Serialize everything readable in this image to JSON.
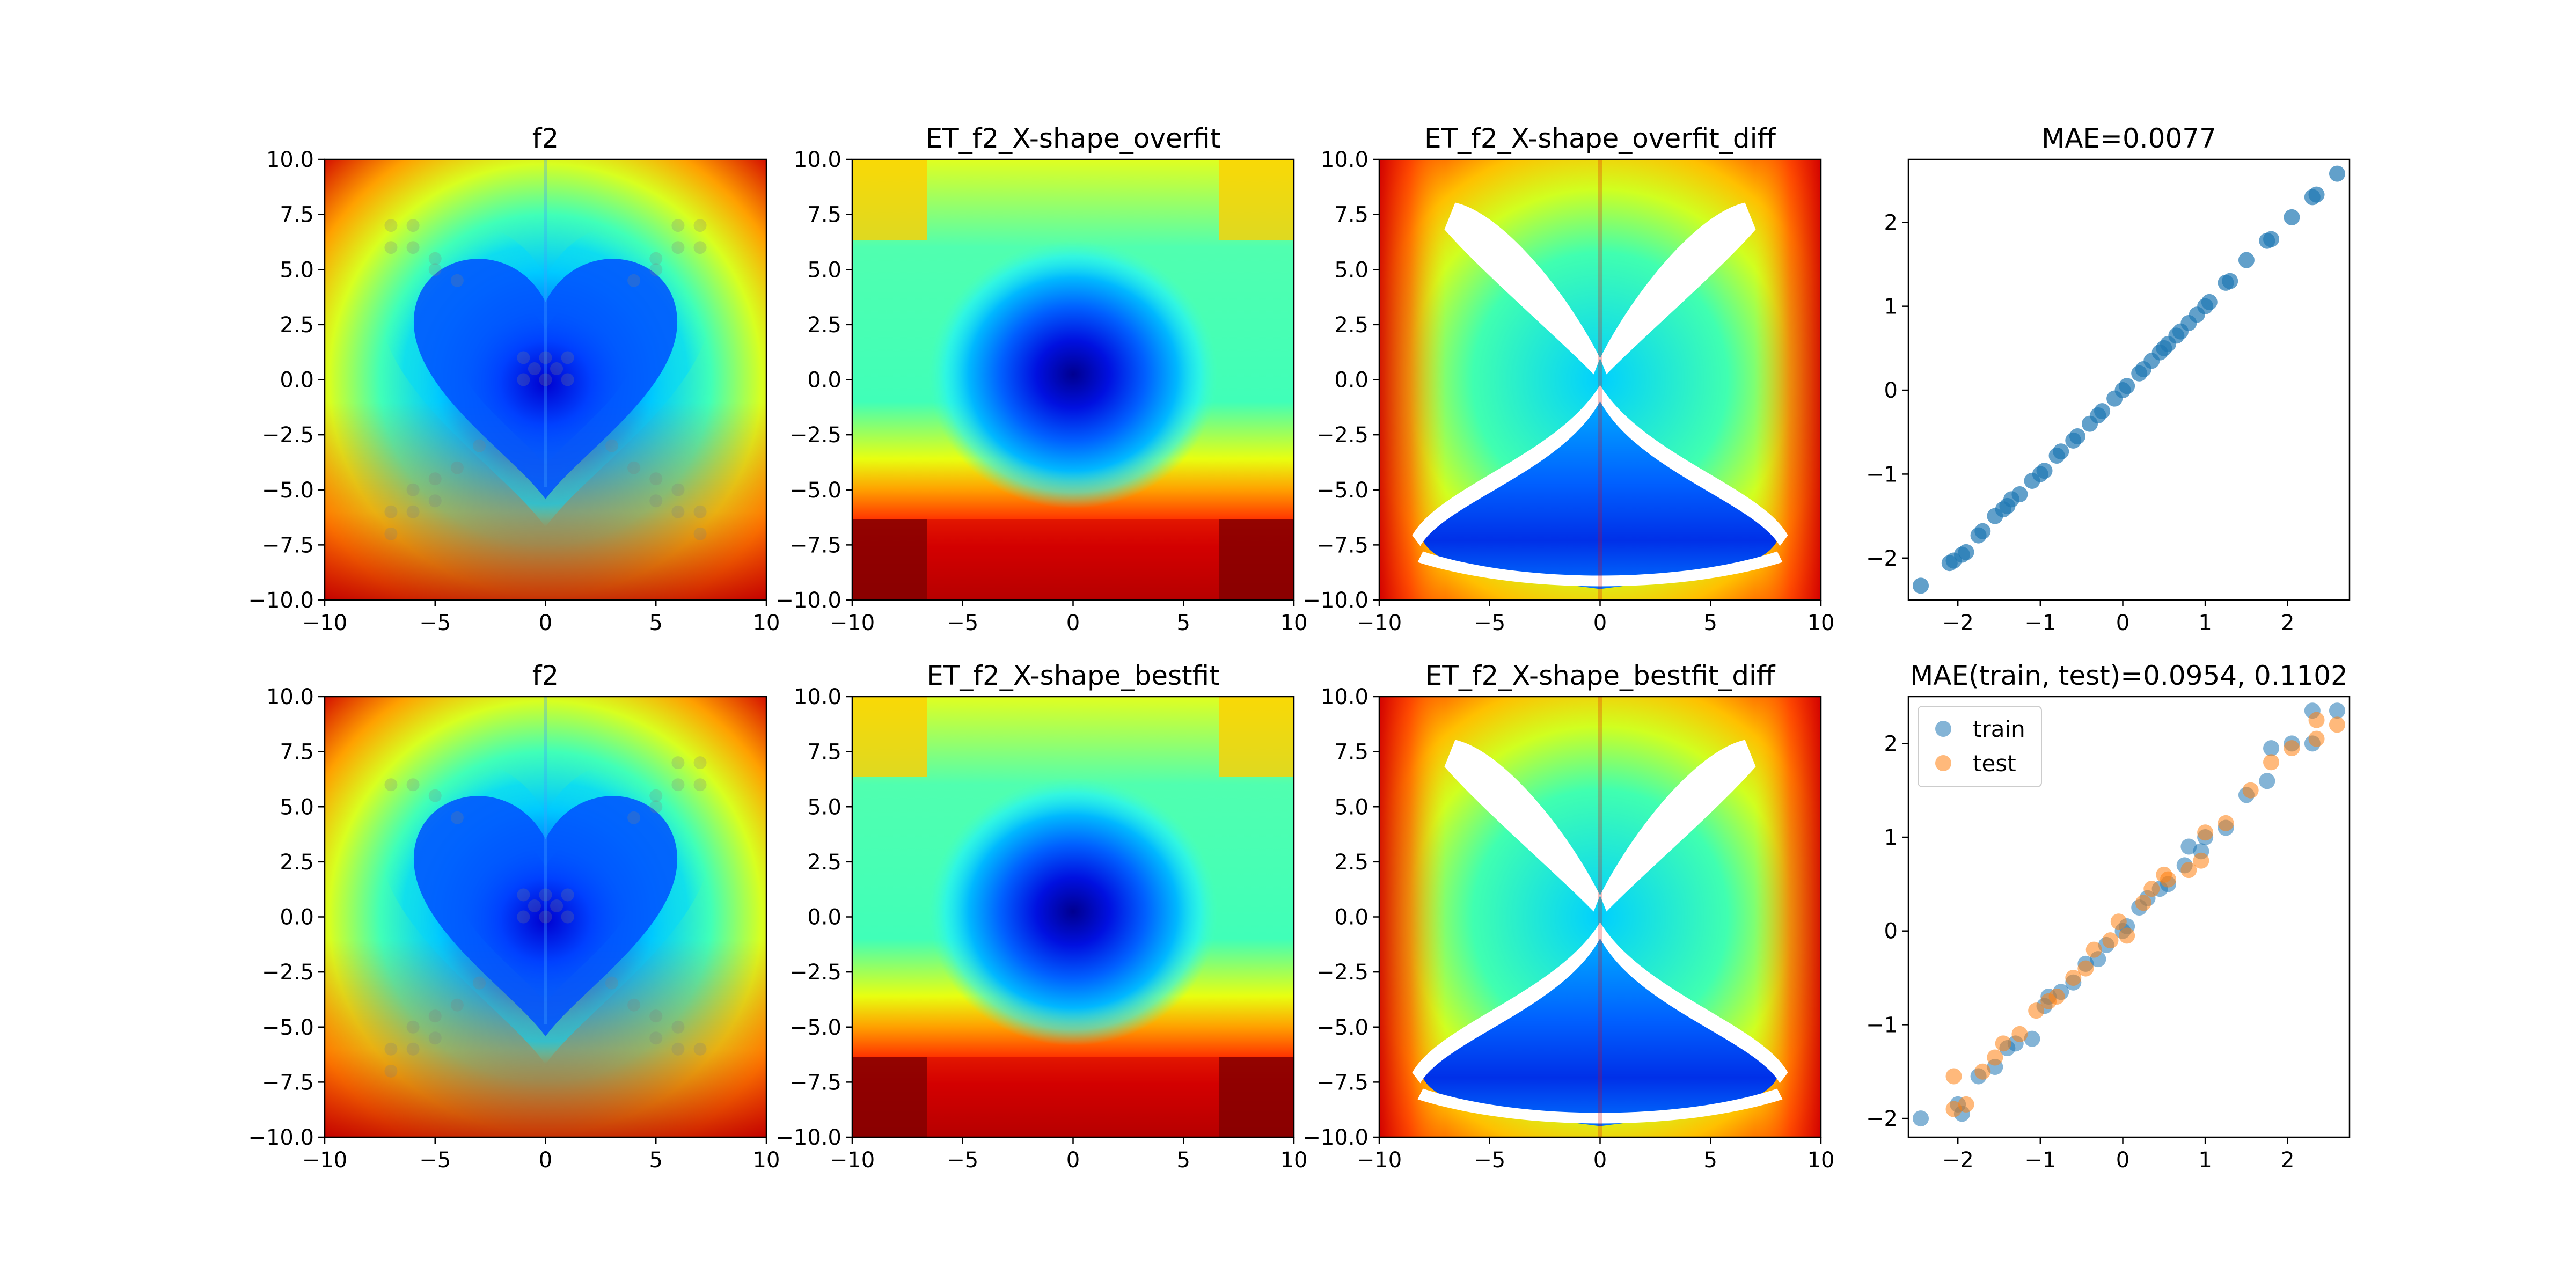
{
  "figure": {
    "background": "#ffffff"
  },
  "chart_data": [
    {
      "id": "p1",
      "type": "heatmap",
      "title": "f2",
      "pattern": "heart",
      "colormap": "jet",
      "xlim": [
        -10,
        10
      ],
      "ylim": [
        -10,
        10
      ],
      "xticks": [
        "−10",
        "−5",
        "0",
        "5",
        "10"
      ],
      "yticks": [
        "10.0",
        "7.5",
        "5.0",
        "2.5",
        "0.0",
        "−2.5",
        "−5.0",
        "−7.5",
        "−10.0"
      ],
      "sample_points": [
        [
          -7,
          7
        ],
        [
          -6,
          7
        ],
        [
          -7,
          6
        ],
        [
          -6,
          6
        ],
        [
          -5,
          5.5
        ],
        [
          -5,
          5
        ],
        [
          -4,
          4.5
        ],
        [
          7,
          7
        ],
        [
          6,
          7
        ],
        [
          7,
          6
        ],
        [
          6,
          6
        ],
        [
          5,
          5.5
        ],
        [
          5,
          5
        ],
        [
          4,
          4.5
        ],
        [
          -1,
          1
        ],
        [
          0,
          1
        ],
        [
          1,
          1
        ],
        [
          -1,
          0
        ],
        [
          0,
          0
        ],
        [
          1,
          0
        ],
        [
          -0.5,
          0.5
        ],
        [
          0.5,
          0.5
        ],
        [
          -3,
          -3
        ],
        [
          -4,
          -4
        ],
        [
          -5,
          -4.5
        ],
        [
          -6,
          -5
        ],
        [
          -5,
          -5.5
        ],
        [
          -7,
          -6
        ],
        [
          -6,
          -6
        ],
        [
          -7,
          -7
        ],
        [
          3,
          -3
        ],
        [
          4,
          -4
        ],
        [
          5,
          -4.5
        ],
        [
          6,
          -5
        ],
        [
          5,
          -5.5
        ],
        [
          7,
          -6
        ],
        [
          6,
          -6
        ],
        [
          7,
          -7
        ]
      ]
    },
    {
      "id": "p2",
      "type": "heatmap",
      "title": "ET_f2_X-shape_overfit",
      "pattern": "fit",
      "colormap": "jet",
      "xlim": [
        -10,
        10
      ],
      "ylim": [
        -10,
        10
      ],
      "xticks": [
        "−10",
        "−5",
        "0",
        "5",
        "10"
      ],
      "yticks": [
        "10.0",
        "7.5",
        "5.0",
        "2.5",
        "0.0",
        "−2.5",
        "−5.0",
        "−7.5",
        "−10.0"
      ]
    },
    {
      "id": "p3",
      "type": "heatmap",
      "title": "ET_f2_X-shape_overfit_diff",
      "pattern": "diff",
      "colormap": "jet",
      "xlim": [
        -10,
        10
      ],
      "ylim": [
        -10,
        10
      ],
      "xticks": [
        "−10",
        "−5",
        "0",
        "5",
        "10"
      ],
      "yticks": [
        "10.0",
        "7.5",
        "5.0",
        "2.5",
        "0.0",
        "−2.5",
        "−5.0",
        "−7.5",
        "−10.0"
      ]
    },
    {
      "id": "p4",
      "type": "scatter",
      "title": "MAE=0.0077",
      "xlim": [
        -2.6,
        2.75
      ],
      "ylim": [
        -2.5,
        2.75
      ],
      "xticks": [
        {
          "v": -2,
          "t": "−2"
        },
        {
          "v": -1,
          "t": "−1"
        },
        {
          "v": 0,
          "t": "0"
        },
        {
          "v": 1,
          "t": "1"
        },
        {
          "v": 2,
          "t": "2"
        }
      ],
      "yticks": [
        {
          "v": -2,
          "t": "−2"
        },
        {
          "v": -1,
          "t": "−1"
        },
        {
          "v": 0,
          "t": "0"
        },
        {
          "v": 1,
          "t": "1"
        },
        {
          "v": 2,
          "t": "2"
        }
      ],
      "legend": false,
      "series": [
        {
          "color": "#1f77b4",
          "alpha": 0.7,
          "points": [
            [
              -2.45,
              -2.33
            ],
            [
              -2.1,
              -2.06
            ],
            [
              -2.05,
              -2.03
            ],
            [
              -1.95,
              -1.96
            ],
            [
              -1.9,
              -1.93
            ],
            [
              -1.75,
              -1.73
            ],
            [
              -1.7,
              -1.68
            ],
            [
              -1.55,
              -1.5
            ],
            [
              -1.45,
              -1.42
            ],
            [
              -1.4,
              -1.38
            ],
            [
              -1.35,
              -1.3
            ],
            [
              -1.25,
              -1.24
            ],
            [
              -1.1,
              -1.08
            ],
            [
              -1.0,
              -1.0
            ],
            [
              -0.95,
              -0.96
            ],
            [
              -0.8,
              -0.78
            ],
            [
              -0.75,
              -0.73
            ],
            [
              -0.6,
              -0.6
            ],
            [
              -0.55,
              -0.55
            ],
            [
              -0.4,
              -0.4
            ],
            [
              -0.3,
              -0.3
            ],
            [
              -0.25,
              -0.25
            ],
            [
              -0.1,
              -0.1
            ],
            [
              0.0,
              0.0
            ],
            [
              0.05,
              0.05
            ],
            [
              0.2,
              0.2
            ],
            [
              0.25,
              0.25
            ],
            [
              0.35,
              0.35
            ],
            [
              0.45,
              0.45
            ],
            [
              0.5,
              0.5
            ],
            [
              0.55,
              0.55
            ],
            [
              0.65,
              0.65
            ],
            [
              0.7,
              0.7
            ],
            [
              0.8,
              0.8
            ],
            [
              0.9,
              0.9
            ],
            [
              1.0,
              1.0
            ],
            [
              1.05,
              1.05
            ],
            [
              1.25,
              1.28
            ],
            [
              1.3,
              1.3
            ],
            [
              1.5,
              1.55
            ],
            [
              1.75,
              1.78
            ],
            [
              1.8,
              1.8
            ],
            [
              2.05,
              2.06
            ],
            [
              2.3,
              2.3
            ],
            [
              2.35,
              2.33
            ],
            [
              2.6,
              2.58
            ]
          ]
        }
      ]
    },
    {
      "id": "p5",
      "type": "heatmap",
      "title": "f2",
      "pattern": "heart",
      "colormap": "jet",
      "xlim": [
        -10,
        10
      ],
      "ylim": [
        -10,
        10
      ],
      "xticks": [
        "−10",
        "−5",
        "0",
        "5",
        "10"
      ],
      "yticks": [
        "10.0",
        "7.5",
        "5.0",
        "2.5",
        "0.0",
        "−2.5",
        "−5.0",
        "−7.5",
        "−10.0"
      ],
      "sample_points": [
        [
          -7,
          6
        ],
        [
          -6,
          6
        ],
        [
          -5,
          5.5
        ],
        [
          -4,
          4.5
        ],
        [
          7,
          7
        ],
        [
          6,
          7
        ],
        [
          7,
          6
        ],
        [
          6,
          6
        ],
        [
          5,
          5.5
        ],
        [
          5,
          5
        ],
        [
          4,
          4.5
        ],
        [
          -1,
          1
        ],
        [
          0,
          1
        ],
        [
          1,
          1
        ],
        [
          -1,
          0
        ],
        [
          0,
          0
        ],
        [
          1,
          0
        ],
        [
          -0.5,
          0.5
        ],
        [
          0.5,
          0.5
        ],
        [
          -3,
          -3
        ],
        [
          -4,
          -4
        ],
        [
          -5,
          -4.5
        ],
        [
          -6,
          -5
        ],
        [
          -5,
          -5.5
        ],
        [
          -7,
          -6
        ],
        [
          -6,
          -6
        ],
        [
          -7,
          -7
        ],
        [
          3,
          -3
        ],
        [
          4,
          -4
        ],
        [
          5,
          -4.5
        ],
        [
          6,
          -5
        ],
        [
          5,
          -5.5
        ],
        [
          7,
          -6
        ],
        [
          6,
          -6
        ]
      ]
    },
    {
      "id": "p6",
      "type": "heatmap",
      "title": "ET_f2_X-shape_bestfit",
      "pattern": "fit",
      "colormap": "jet",
      "xlim": [
        -10,
        10
      ],
      "ylim": [
        -10,
        10
      ],
      "xticks": [
        "−10",
        "−5",
        "0",
        "5",
        "10"
      ],
      "yticks": [
        "10.0",
        "7.5",
        "5.0",
        "2.5",
        "0.0",
        "−2.5",
        "−5.0",
        "−7.5",
        "−10.0"
      ]
    },
    {
      "id": "p7",
      "type": "heatmap",
      "title": "ET_f2_X-shape_bestfit_diff",
      "pattern": "diff",
      "colormap": "jet",
      "xlim": [
        -10,
        10
      ],
      "ylim": [
        -10,
        10
      ],
      "xticks": [
        "−10",
        "−5",
        "0",
        "5",
        "10"
      ],
      "yticks": [
        "10.0",
        "7.5",
        "5.0",
        "2.5",
        "0.0",
        "−2.5",
        "−5.0",
        "−7.5",
        "−10.0"
      ]
    },
    {
      "id": "p8",
      "type": "scatter",
      "title": "MAE(train, test)=0.0954, 0.1102",
      "xlim": [
        -2.6,
        2.75
      ],
      "ylim": [
        -2.2,
        2.5
      ],
      "xticks": [
        {
          "v": -2,
          "t": "−2"
        },
        {
          "v": -1,
          "t": "−1"
        },
        {
          "v": 0,
          "t": "0"
        },
        {
          "v": 1,
          "t": "1"
        },
        {
          "v": 2,
          "t": "2"
        }
      ],
      "yticks": [
        {
          "v": -2,
          "t": "−2"
        },
        {
          "v": -1,
          "t": "−1"
        },
        {
          "v": 0,
          "t": "0"
        },
        {
          "v": 1,
          "t": "1"
        },
        {
          "v": 2,
          "t": "2"
        }
      ],
      "legend": true,
      "series": [
        {
          "name": "train",
          "color": "#1f77b4",
          "alpha": 0.55,
          "points": [
            [
              -2.45,
              -2.0
            ],
            [
              -2.0,
              -1.85
            ],
            [
              -1.95,
              -1.95
            ],
            [
              -1.75,
              -1.55
            ],
            [
              -1.55,
              -1.45
            ],
            [
              -1.4,
              -1.25
            ],
            [
              -1.3,
              -1.2
            ],
            [
              -1.1,
              -1.15
            ],
            [
              -0.95,
              -0.8
            ],
            [
              -0.9,
              -0.7
            ],
            [
              -0.75,
              -0.65
            ],
            [
              -0.6,
              -0.55
            ],
            [
              -0.45,
              -0.35
            ],
            [
              -0.3,
              -0.3
            ],
            [
              -0.2,
              -0.15
            ],
            [
              0.0,
              0.0
            ],
            [
              0.05,
              0.05
            ],
            [
              0.2,
              0.25
            ],
            [
              0.3,
              0.35
            ],
            [
              0.45,
              0.45
            ],
            [
              0.55,
              0.5
            ],
            [
              0.75,
              0.7
            ],
            [
              0.8,
              0.9
            ],
            [
              0.95,
              0.85
            ],
            [
              1.0,
              1.0
            ],
            [
              1.25,
              1.1
            ],
            [
              1.5,
              1.45
            ],
            [
              1.75,
              1.6
            ],
            [
              1.8,
              1.95
            ],
            [
              2.05,
              2.0
            ],
            [
              2.3,
              2.35
            ],
            [
              2.6,
              2.35
            ],
            [
              2.3,
              2.0
            ]
          ]
        },
        {
          "name": "test",
          "color": "#ff7f0e",
          "alpha": 0.55,
          "points": [
            [
              -2.05,
              -1.55
            ],
            [
              -2.05,
              -1.9
            ],
            [
              -1.9,
              -1.85
            ],
            [
              -1.7,
              -1.5
            ],
            [
              -1.55,
              -1.35
            ],
            [
              -1.45,
              -1.2
            ],
            [
              -1.25,
              -1.1
            ],
            [
              -1.05,
              -0.85
            ],
            [
              -0.9,
              -0.75
            ],
            [
              -0.8,
              -0.7
            ],
            [
              -0.6,
              -0.5
            ],
            [
              -0.45,
              -0.4
            ],
            [
              -0.35,
              -0.2
            ],
            [
              -0.15,
              -0.1
            ],
            [
              -0.05,
              0.1
            ],
            [
              0.05,
              -0.05
            ],
            [
              0.25,
              0.3
            ],
            [
              0.35,
              0.45
            ],
            [
              0.5,
              0.6
            ],
            [
              0.55,
              0.55
            ],
            [
              0.8,
              0.65
            ],
            [
              0.95,
              0.75
            ],
            [
              1.0,
              1.05
            ],
            [
              1.25,
              1.15
            ],
            [
              1.55,
              1.5
            ],
            [
              1.8,
              1.8
            ],
            [
              2.05,
              1.95
            ],
            [
              2.35,
              2.05
            ],
            [
              2.6,
              2.2
            ],
            [
              2.35,
              2.25
            ]
          ]
        }
      ]
    }
  ]
}
